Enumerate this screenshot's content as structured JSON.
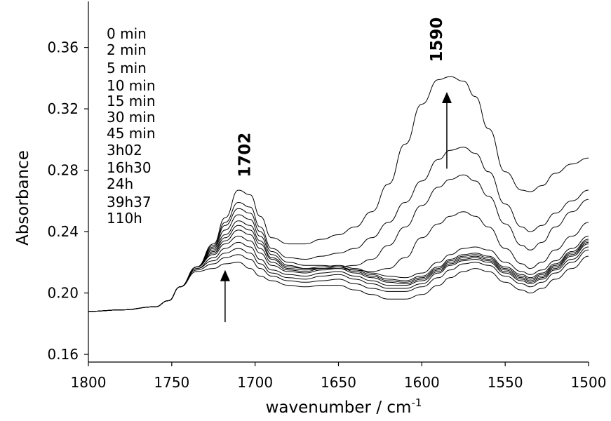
{
  "chart_data": {
    "type": "line",
    "xlabel": "wavenumber / cm",
    "xlabel_superscript": "-1",
    "ylabel": "Absorbance",
    "xlim": [
      1800,
      1500
    ],
    "ylim": [
      0.155,
      0.39
    ],
    "x_ticks": [
      1800,
      1750,
      1700,
      1650,
      1600,
      1550,
      1500
    ],
    "x_tick_labels": [
      "1800",
      "1750",
      "1700",
      "1650",
      "1600",
      "1550",
      "1500"
    ],
    "y_ticks": [
      0.16,
      0.2,
      0.24,
      0.28,
      0.32,
      0.36
    ],
    "y_tick_labels": [
      "0.16",
      "0.20",
      "0.24",
      "0.28",
      "0.32",
      "0.36"
    ],
    "grid": false,
    "legend_placement": "top-left",
    "legend": [
      "0 min",
      "2 min",
      "5 min",
      "10 min",
      "15 min",
      "30 min",
      "45 min",
      "3h02",
      "16h30",
      "24h",
      "39h37",
      "110h"
    ],
    "annotations": [
      {
        "text": "1702",
        "x": 1703,
        "y": 0.29,
        "rotation": -90
      },
      {
        "text": "1590",
        "x": 1588,
        "y": 0.365,
        "rotation": -90
      }
    ],
    "arrows": [
      {
        "x": 1718,
        "y_from": 0.181,
        "y_to": 0.215
      },
      {
        "x": 1585,
        "y_from": 0.281,
        "y_to": 0.331
      }
    ],
    "series": [
      {
        "x": [
          1800,
          1780,
          1760,
          1752,
          1745,
          1735,
          1725,
          1718,
          1710,
          1703,
          1697,
          1690,
          1680,
          1670,
          1660,
          1650,
          1640,
          1630,
          1620,
          1610,
          1600,
          1590,
          1583,
          1575,
          1568,
          1560,
          1550,
          1540,
          1535,
          1528,
          1520,
          1510,
          1500
        ],
        "y": [
          0.188,
          0.189,
          0.191,
          0.195,
          0.204,
          0.214,
          0.216,
          0.219,
          0.22,
          0.216,
          0.211,
          0.208,
          0.205,
          0.204,
          0.205,
          0.205,
          0.202,
          0.199,
          0.196,
          0.196,
          0.199,
          0.205,
          0.21,
          0.214,
          0.216,
          0.214,
          0.207,
          0.202,
          0.2,
          0.203,
          0.209,
          0.216,
          0.224
        ]
      },
      {
        "x": [
          1800,
          1780,
          1760,
          1752,
          1745,
          1735,
          1725,
          1718,
          1710,
          1703,
          1697,
          1690,
          1680,
          1670,
          1660,
          1650,
          1640,
          1630,
          1620,
          1610,
          1600,
          1590,
          1583,
          1575,
          1568,
          1560,
          1550,
          1540,
          1535,
          1528,
          1520,
          1510,
          1500
        ],
        "y": [
          0.188,
          0.189,
          0.191,
          0.195,
          0.204,
          0.215,
          0.219,
          0.223,
          0.225,
          0.222,
          0.216,
          0.211,
          0.208,
          0.207,
          0.208,
          0.209,
          0.206,
          0.203,
          0.201,
          0.201,
          0.204,
          0.21,
          0.215,
          0.219,
          0.22,
          0.218,
          0.211,
          0.206,
          0.204,
          0.207,
          0.213,
          0.22,
          0.228
        ]
      },
      {
        "x": [
          1800,
          1780,
          1760,
          1752,
          1745,
          1735,
          1725,
          1718,
          1710,
          1703,
          1697,
          1690,
          1680,
          1670,
          1660,
          1650,
          1640,
          1630,
          1620,
          1610,
          1600,
          1590,
          1583,
          1575,
          1568,
          1560,
          1550,
          1540,
          1535,
          1528,
          1520,
          1510,
          1500
        ],
        "y": [
          0.188,
          0.189,
          0.191,
          0.195,
          0.204,
          0.216,
          0.221,
          0.226,
          0.229,
          0.226,
          0.219,
          0.213,
          0.21,
          0.209,
          0.211,
          0.212,
          0.209,
          0.206,
          0.203,
          0.203,
          0.206,
          0.213,
          0.218,
          0.221,
          0.222,
          0.22,
          0.213,
          0.208,
          0.206,
          0.209,
          0.215,
          0.222,
          0.23
        ]
      },
      {
        "x": [
          1800,
          1780,
          1760,
          1752,
          1745,
          1735,
          1725,
          1718,
          1710,
          1703,
          1697,
          1690,
          1680,
          1670,
          1660,
          1650,
          1640,
          1630,
          1620,
          1610,
          1600,
          1590,
          1583,
          1575,
          1568,
          1560,
          1550,
          1540,
          1535,
          1528,
          1520,
          1510,
          1500
        ],
        "y": [
          0.188,
          0.189,
          0.191,
          0.195,
          0.204,
          0.216,
          0.223,
          0.229,
          0.233,
          0.23,
          0.222,
          0.215,
          0.212,
          0.211,
          0.213,
          0.214,
          0.211,
          0.208,
          0.205,
          0.205,
          0.208,
          0.214,
          0.219,
          0.222,
          0.223,
          0.221,
          0.214,
          0.209,
          0.207,
          0.21,
          0.216,
          0.224,
          0.232
        ]
      },
      {
        "x": [
          1800,
          1780,
          1760,
          1752,
          1745,
          1735,
          1725,
          1718,
          1710,
          1703,
          1697,
          1690,
          1680,
          1670,
          1660,
          1650,
          1640,
          1630,
          1620,
          1610,
          1600,
          1590,
          1583,
          1575,
          1568,
          1560,
          1550,
          1540,
          1535,
          1528,
          1520,
          1510,
          1500
        ],
        "y": [
          0.188,
          0.189,
          0.191,
          0.195,
          0.204,
          0.217,
          0.225,
          0.232,
          0.237,
          0.234,
          0.226,
          0.218,
          0.214,
          0.213,
          0.215,
          0.216,
          0.213,
          0.21,
          0.207,
          0.206,
          0.209,
          0.215,
          0.22,
          0.223,
          0.224,
          0.222,
          0.215,
          0.21,
          0.208,
          0.211,
          0.217,
          0.225,
          0.233
        ]
      },
      {
        "x": [
          1800,
          1780,
          1760,
          1752,
          1745,
          1735,
          1725,
          1718,
          1710,
          1703,
          1697,
          1690,
          1680,
          1670,
          1660,
          1650,
          1640,
          1630,
          1620,
          1610,
          1600,
          1590,
          1583,
          1575,
          1568,
          1560,
          1550,
          1540,
          1535,
          1528,
          1520,
          1510,
          1500
        ],
        "y": [
          0.188,
          0.189,
          0.191,
          0.195,
          0.204,
          0.217,
          0.226,
          0.234,
          0.241,
          0.238,
          0.229,
          0.22,
          0.215,
          0.214,
          0.216,
          0.217,
          0.214,
          0.211,
          0.208,
          0.207,
          0.21,
          0.216,
          0.221,
          0.224,
          0.225,
          0.223,
          0.216,
          0.211,
          0.209,
          0.212,
          0.218,
          0.226,
          0.234
        ]
      },
      {
        "x": [
          1800,
          1780,
          1760,
          1752,
          1745,
          1735,
          1725,
          1718,
          1710,
          1703,
          1697,
          1690,
          1680,
          1670,
          1660,
          1650,
          1640,
          1630,
          1620,
          1610,
          1600,
          1590,
          1583,
          1575,
          1568,
          1560,
          1550,
          1540,
          1535,
          1528,
          1520,
          1510,
          1500
        ],
        "y": [
          0.188,
          0.189,
          0.191,
          0.195,
          0.204,
          0.217,
          0.227,
          0.236,
          0.244,
          0.241,
          0.232,
          0.222,
          0.216,
          0.215,
          0.216,
          0.217,
          0.215,
          0.212,
          0.209,
          0.208,
          0.211,
          0.217,
          0.222,
          0.225,
          0.226,
          0.224,
          0.217,
          0.212,
          0.21,
          0.213,
          0.219,
          0.227,
          0.235
        ]
      },
      {
        "x": [
          1800,
          1780,
          1760,
          1752,
          1745,
          1735,
          1725,
          1718,
          1710,
          1703,
          1697,
          1690,
          1680,
          1670,
          1660,
          1650,
          1640,
          1630,
          1620,
          1610,
          1600,
          1590,
          1583,
          1575,
          1568,
          1560,
          1550,
          1540,
          1535,
          1528,
          1520,
          1510,
          1500
        ],
        "y": [
          0.188,
          0.189,
          0.191,
          0.195,
          0.204,
          0.217,
          0.228,
          0.238,
          0.247,
          0.244,
          0.234,
          0.223,
          0.217,
          0.216,
          0.217,
          0.218,
          0.216,
          0.213,
          0.211,
          0.21,
          0.213,
          0.22,
          0.225,
          0.229,
          0.23,
          0.228,
          0.22,
          0.214,
          0.212,
          0.215,
          0.221,
          0.229,
          0.237
        ]
      },
      {
        "x": [
          1800,
          1780,
          1760,
          1752,
          1745,
          1735,
          1725,
          1718,
          1710,
          1703,
          1697,
          1690,
          1680,
          1670,
          1660,
          1650,
          1640,
          1630,
          1620,
          1610,
          1600,
          1590,
          1583,
          1575,
          1568,
          1560,
          1550,
          1540,
          1535,
          1528,
          1520,
          1510,
          1500
        ],
        "y": [
          0.188,
          0.189,
          0.191,
          0.195,
          0.204,
          0.217,
          0.229,
          0.241,
          0.251,
          0.248,
          0.237,
          0.225,
          0.218,
          0.216,
          0.216,
          0.216,
          0.215,
          0.214,
          0.216,
          0.223,
          0.236,
          0.245,
          0.25,
          0.253,
          0.25,
          0.243,
          0.229,
          0.219,
          0.216,
          0.22,
          0.228,
          0.237,
          0.246
        ]
      },
      {
        "x": [
          1800,
          1780,
          1760,
          1752,
          1745,
          1735,
          1725,
          1718,
          1710,
          1703,
          1697,
          1690,
          1680,
          1670,
          1660,
          1650,
          1640,
          1630,
          1620,
          1610,
          1600,
          1590,
          1583,
          1575,
          1568,
          1560,
          1550,
          1540,
          1535,
          1528,
          1520,
          1510,
          1500
        ],
        "y": [
          0.188,
          0.189,
          0.191,
          0.195,
          0.204,
          0.217,
          0.23,
          0.244,
          0.255,
          0.252,
          0.24,
          0.227,
          0.22,
          0.218,
          0.218,
          0.217,
          0.218,
          0.222,
          0.231,
          0.243,
          0.257,
          0.269,
          0.274,
          0.277,
          0.273,
          0.263,
          0.245,
          0.231,
          0.228,
          0.233,
          0.243,
          0.253,
          0.261
        ]
      },
      {
        "x": [
          1800,
          1780,
          1760,
          1752,
          1745,
          1735,
          1725,
          1718,
          1710,
          1703,
          1697,
          1690,
          1680,
          1670,
          1660,
          1650,
          1640,
          1630,
          1620,
          1610,
          1600,
          1590,
          1583,
          1575,
          1568,
          1560,
          1550,
          1540,
          1535,
          1528,
          1520,
          1510,
          1500
        ],
        "y": [
          0.188,
          0.189,
          0.191,
          0.195,
          0.204,
          0.217,
          0.231,
          0.246,
          0.259,
          0.256,
          0.243,
          0.229,
          0.223,
          0.222,
          0.224,
          0.226,
          0.229,
          0.236,
          0.246,
          0.259,
          0.273,
          0.287,
          0.293,
          0.295,
          0.291,
          0.279,
          0.258,
          0.243,
          0.24,
          0.244,
          0.252,
          0.26,
          0.267
        ]
      },
      {
        "x": [
          1800,
          1780,
          1760,
          1752,
          1745,
          1735,
          1725,
          1718,
          1710,
          1703,
          1697,
          1690,
          1680,
          1670,
          1660,
          1650,
          1640,
          1630,
          1620,
          1610,
          1600,
          1590,
          1583,
          1575,
          1568,
          1560,
          1550,
          1540,
          1535,
          1528,
          1520,
          1510,
          1500
        ],
        "y": [
          0.188,
          0.189,
          0.191,
          0.195,
          0.204,
          0.217,
          0.232,
          0.249,
          0.267,
          0.264,
          0.25,
          0.236,
          0.232,
          0.232,
          0.235,
          0.238,
          0.243,
          0.253,
          0.271,
          0.297,
          0.323,
          0.339,
          0.341,
          0.338,
          0.328,
          0.307,
          0.279,
          0.267,
          0.266,
          0.27,
          0.278,
          0.284,
          0.288
        ]
      }
    ]
  }
}
